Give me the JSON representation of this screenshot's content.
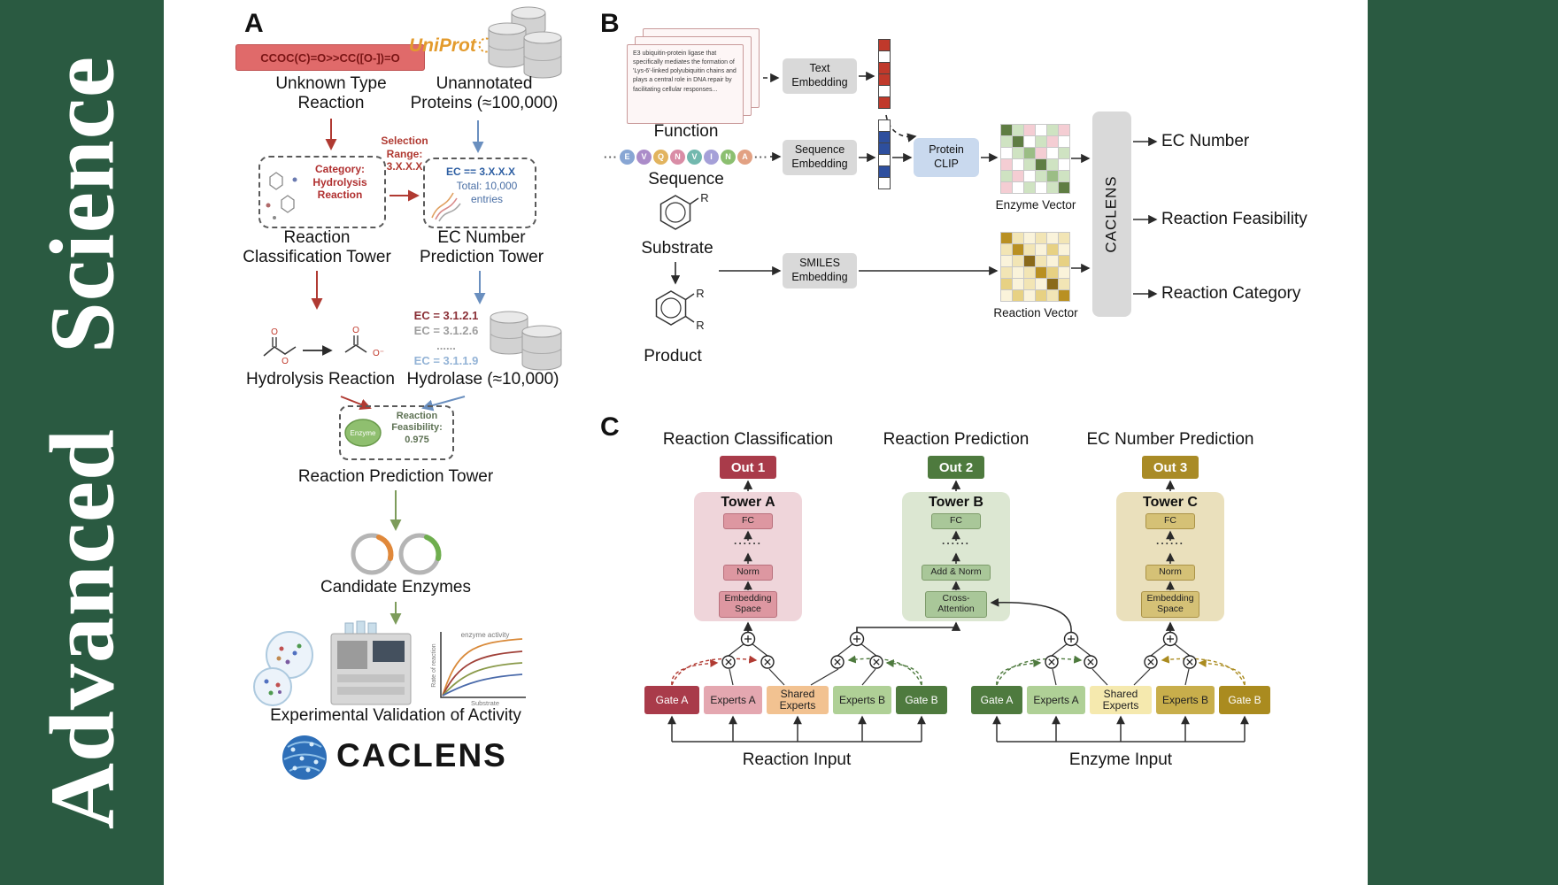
{
  "journal": {
    "name": "Advanced Science"
  },
  "panelA": {
    "label": "A",
    "smiles": "CCOC(C)=O>>CC([O-])=O",
    "unknown_reaction": "Unknown Type\nReaction",
    "uniprot": "UniProt",
    "unannotated_proteins": "Unannotated\nProteins (≈100,000)",
    "selection_range": "Selection\nRange:\n3.X.X.X",
    "category_box": "Category:\nHydrolysis\nReaction",
    "ec_box": {
      "line1": "EC == 3.X.X.X",
      "line2": "Total: 10,000",
      "line3": "entries"
    },
    "classification_tower": "Reaction\nClassification Tower",
    "ec_tower": "EC Number\nPrediction Tower",
    "hydrolysis_reaction": "Hydrolysis Reaction",
    "ec_items": [
      {
        "text": "EC = 3.1.2.1",
        "color": "#8a2f36"
      },
      {
        "text": "EC = 3.1.2.6",
        "color": "#9e9e9e"
      },
      {
        "text": "......",
        "color": "#9e9e9e"
      },
      {
        "text": "EC = 3.1.1.9",
        "color": "#93b3d6"
      }
    ],
    "hydrolase": "Hydrolase (≈10,000)",
    "enzyme_icon_label": "Enzyme",
    "feasibility": "Reaction\nFeasibility:\n0.975",
    "prediction_tower": "Reaction Prediction Tower",
    "candidate_enzymes": "Candidate Enzymes",
    "activity_plot": {
      "title": "enzyme activity",
      "xlabel": "Substrate",
      "ylabel": "Rate of reaction"
    },
    "validation": "Experimental Validation of Activity",
    "logo_text": "CACLENS"
  },
  "panelB": {
    "label": "B",
    "function_card_text": "E3 ubiquitin-protein ligase that specifically mediates the formation of 'Lys-6'-linked polyubiquitin chains and plays a central role in DNA repair by facilitating cellular responses...",
    "function_label": "Function",
    "ellipsis": "···",
    "sequence_residues": [
      {
        "letter": "E",
        "color": "#88a6d4"
      },
      {
        "letter": "V",
        "color": "#ab8cc9"
      },
      {
        "letter": "Q",
        "color": "#e2b45f"
      },
      {
        "letter": "N",
        "color": "#d98da6"
      },
      {
        "letter": "V",
        "color": "#72b8ae"
      },
      {
        "letter": "I",
        "color": "#a5a0d8"
      },
      {
        "letter": "N",
        "color": "#8cbf70"
      },
      {
        "letter": "A",
        "color": "#e2a183"
      }
    ],
    "sequence_label": "Sequence",
    "substituent": "R",
    "substrate_label": "Substrate",
    "product_label": "Product",
    "text_embedding": "Text\nEmbedding",
    "sequence_embedding": "Sequence\nEmbedding",
    "smiles_embedding": "SMILES\nEmbedding",
    "protein_clip": "Protein\nCLIP",
    "text_vector": [
      "#c0392b",
      "#ffffff",
      "#c0392b",
      "#c0392b",
      "#ffffff",
      "#c0392b"
    ],
    "sequence_vector": [
      "#ffffff",
      "#2e4f9e",
      "#2e4f9e",
      "#ffffff",
      "#2e4f9e",
      "#ffffff"
    ],
    "enzyme_matrix": [
      "#5f7d43",
      "#cfe3c2",
      "#f4cdd3",
      "#ffffff",
      "#cfe3c2",
      "#f4cdd3",
      "#cfe3c2",
      "#5f7d43",
      "#ffffff",
      "#cfe3c2",
      "#f4cdd3",
      "#ffffff",
      "#ffffff",
      "#cfe3c2",
      "#9bbd85",
      "#f4cdd3",
      "#ffffff",
      "#cfe3c2",
      "#f4cdd3",
      "#ffffff",
      "#cfe3c2",
      "#5f7d43",
      "#cfe3c2",
      "#ffffff",
      "#cfe3c2",
      "#f4cdd3",
      "#ffffff",
      "#cfe3c2",
      "#9bbd85",
      "#cfe3c2",
      "#f4cdd3",
      "#ffffff",
      "#cfe3c2",
      "#ffffff",
      "#cfe3c2",
      "#5f7d43"
    ],
    "reaction_matrix": [
      "#b99022",
      "#f2e5b5",
      "#faf3da",
      "#f2e5b5",
      "#faf3da",
      "#f2e5b5",
      "#f2e5b5",
      "#b99022",
      "#f2e5b5",
      "#faf3da",
      "#e7d183",
      "#faf3da",
      "#faf3da",
      "#f2e5b5",
      "#8a6a1a",
      "#f2e5b5",
      "#faf3da",
      "#e7d183",
      "#f2e5b5",
      "#faf3da",
      "#f2e5b5",
      "#b99022",
      "#e7d183",
      "#faf3da",
      "#e7d183",
      "#faf3da",
      "#f2e5b5",
      "#faf3da",
      "#8a6a1a",
      "#f2e5b5",
      "#faf3da",
      "#e7d183",
      "#faf3da",
      "#e7d183",
      "#f2e5b5",
      "#b99022"
    ],
    "enzyme_vector_label": "Enzyme Vector",
    "reaction_vector_label": "Reaction Vector",
    "caclens_box": "CACLENS",
    "outputs": [
      "EC Number",
      "Reaction Feasibility",
      "Reaction Category"
    ]
  },
  "panelC": {
    "label": "C",
    "headers": [
      "Reaction Classification",
      "Reaction Prediction",
      "EC Number Prediction"
    ],
    "outs": [
      {
        "label": "Out 1",
        "color": "#a93b4a"
      },
      {
        "label": "Out 2",
        "color": "#4e7a3e"
      },
      {
        "label": "Out 3",
        "color": "#a98b26"
      }
    ],
    "towers": [
      {
        "title": "Tower A",
        "fc": "FC",
        "dots": "......",
        "mid": "Norm",
        "bottom": "Embedding\nSpace",
        "bg": "#efd5da",
        "box": "#dd97a1",
        "border": "#b9707c"
      },
      {
        "title": "Tower B",
        "fc": "FC",
        "dots": "......",
        "mid": "Add & Norm",
        "bottom": "Cross-\nAttention",
        "bg": "#dce7d2",
        "box": "#a9c799",
        "border": "#7d9b6a"
      },
      {
        "title": "Tower C",
        "fc": "FC",
        "dots": "......",
        "mid": "Norm",
        "bottom": "Embedding\nSpace",
        "bg": "#eae0bc",
        "box": "#d5c176",
        "border": "#ab9347"
      }
    ],
    "left_group": [
      {
        "label": "Gate A",
        "bg": "#a93b4a",
        "fg": "#ffffff"
      },
      {
        "label": "Experts A",
        "bg": "#e4a7b0",
        "fg": "#222222"
      },
      {
        "label": "Shared\nExperts",
        "bg": "#f2c291",
        "fg": "#222222"
      },
      {
        "label": "Experts B",
        "bg": "#afd096",
        "fg": "#222222"
      },
      {
        "label": "Gate B",
        "bg": "#4e7a3e",
        "fg": "#ffffff"
      }
    ],
    "right_group": [
      {
        "label": "Gate A",
        "bg": "#4e7a3e",
        "fg": "#ffffff"
      },
      {
        "label": "Experts A",
        "bg": "#afd096",
        "fg": "#222222"
      },
      {
        "label": "Shared\nExperts",
        "bg": "#f5e9ae",
        "fg": "#222222"
      },
      {
        "label": "Experts B",
        "bg": "#c8ae4b",
        "fg": "#222222"
      },
      {
        "label": "Gate B",
        "bg": "#aa8b1f",
        "fg": "#ffffff"
      }
    ],
    "inputs": [
      "Reaction Input",
      "Enzyme Input"
    ]
  }
}
